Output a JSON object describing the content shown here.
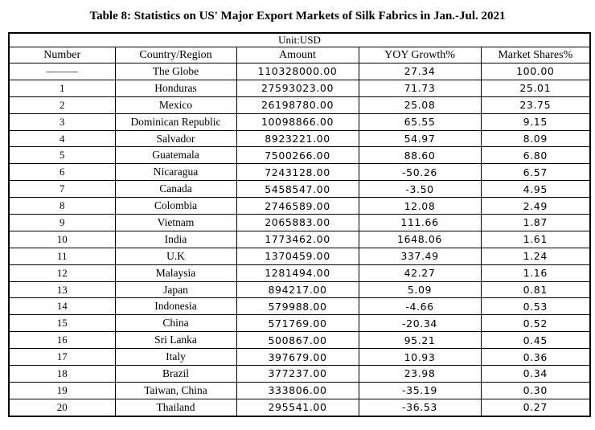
{
  "page": {
    "title": "Table 8: Statistics on US' Major Export Markets of Silk Fabrics in Jan.-Jul. 2021",
    "unit_label": "Unit:USD"
  },
  "table": {
    "columns": [
      "Number",
      "Country/Region",
      "Amount",
      "YOY Growth%",
      "Market Shares%"
    ],
    "rows": [
      [
        "———",
        "The Globe",
        "110328000.00",
        "27.34",
        "100.00"
      ],
      [
        "1",
        "Honduras",
        "27593023.00",
        "71.73",
        "25.01"
      ],
      [
        "2",
        "Mexico",
        "26198780.00",
        "25.08",
        "23.75"
      ],
      [
        "3",
        "Dominican Republic",
        "10098866.00",
        "65.55",
        "9.15"
      ],
      [
        "4",
        "Salvador",
        "8923221.00",
        "54.97",
        "8.09"
      ],
      [
        "5",
        "Guatemala",
        "7500266.00",
        "88.60",
        "6.80"
      ],
      [
        "6",
        "Nicaragua",
        "7243128.00",
        "-50.26",
        "6.57"
      ],
      [
        "7",
        "Canada",
        "5458547.00",
        "-3.50",
        "4.95"
      ],
      [
        "8",
        "Colombia",
        "2746589.00",
        "12.08",
        "2.49"
      ],
      [
        "9",
        "Vietnam",
        "2065883.00",
        "111.66",
        "1.87"
      ],
      [
        "10",
        "India",
        "1773462.00",
        "1648.06",
        "1.61"
      ],
      [
        "11",
        "U.K",
        "1370459.00",
        "337.49",
        "1.24"
      ],
      [
        "12",
        "Malaysia",
        "1281494.00",
        "42.27",
        "1.16"
      ],
      [
        "13",
        "Japan",
        "894217.00",
        "5.09",
        "0.81"
      ],
      [
        "14",
        "Indonesia",
        "579988.00",
        "-4.66",
        "0.53"
      ],
      [
        "15",
        "China",
        "571769.00",
        "-20.34",
        "0.52"
      ],
      [
        "16",
        "Sri Lanka",
        "500867.00",
        "95.21",
        "0.45"
      ],
      [
        "17",
        "Italy",
        "397679.00",
        "10.93",
        "0.36"
      ],
      [
        "18",
        "Brazil",
        "377237.00",
        "23.98",
        "0.34"
      ],
      [
        "19",
        "Taiwan, China",
        "333806.00",
        "-35.19",
        "0.30"
      ],
      [
        "20",
        "Thailand",
        "295541.00",
        "-36.53",
        "0.27"
      ]
    ]
  }
}
